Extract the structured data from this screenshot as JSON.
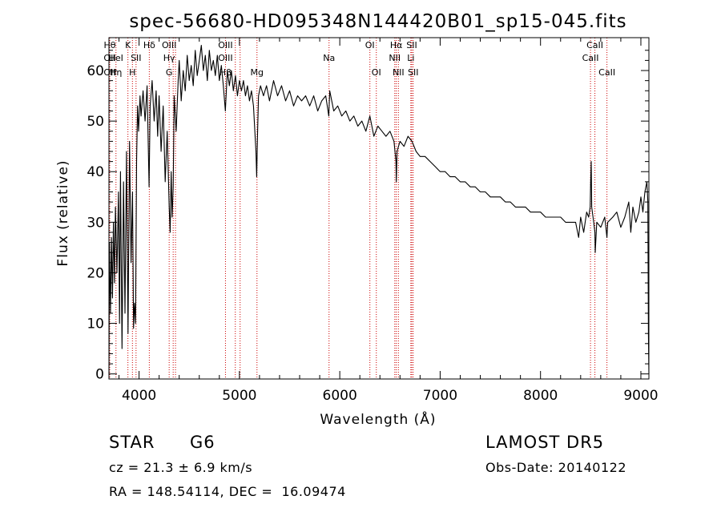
{
  "chart_data": {
    "type": "line",
    "title": "spec-56680-HD095348N144420B01_sp15-045.fits",
    "xlabel": "Wavelength (Å)",
    "ylabel": "Flux (relative)",
    "xlim": [
      3700,
      9080
    ],
    "ylim": [
      -1,
      66.5
    ],
    "xticks": [
      4000,
      5000,
      6000,
      7000,
      8000,
      9000
    ],
    "yticks": [
      0,
      10,
      20,
      30,
      40,
      50,
      60
    ],
    "grid": false,
    "series": [
      {
        "points": [
          [
            3700,
            0
          ],
          [
            3705,
            26
          ],
          [
            3715,
            12
          ],
          [
            3725,
            27
          ],
          [
            3735,
            15
          ],
          [
            3745,
            30
          ],
          [
            3755,
            18
          ],
          [
            3765,
            33
          ],
          [
            3780,
            20
          ],
          [
            3795,
            36
          ],
          [
            3805,
            10
          ],
          [
            3815,
            40
          ],
          [
            3830,
            5
          ],
          [
            3845,
            38
          ],
          [
            3860,
            12
          ],
          [
            3875,
            44
          ],
          [
            3890,
            8
          ],
          [
            3905,
            46
          ],
          [
            3920,
            22
          ],
          [
            3935,
            36
          ],
          [
            3945,
            9
          ],
          [
            3955,
            14
          ],
          [
            3965,
            10
          ],
          [
            3975,
            42
          ],
          [
            3985,
            53
          ],
          [
            3995,
            48
          ],
          [
            4010,
            55
          ],
          [
            4020,
            51
          ],
          [
            4040,
            56
          ],
          [
            4060,
            50
          ],
          [
            4080,
            57
          ],
          [
            4100,
            37
          ],
          [
            4110,
            53
          ],
          [
            4130,
            58
          ],
          [
            4150,
            50
          ],
          [
            4170,
            56
          ],
          [
            4185,
            47
          ],
          [
            4200,
            55
          ],
          [
            4220,
            44
          ],
          [
            4240,
            53
          ],
          [
            4260,
            38
          ],
          [
            4280,
            48
          ],
          [
            4300,
            33
          ],
          [
            4310,
            28
          ],
          [
            4320,
            40
          ],
          [
            4330,
            31
          ],
          [
            4340,
            37
          ],
          [
            4350,
            55
          ],
          [
            4370,
            48
          ],
          [
            4390,
            58
          ],
          [
            4400,
            62
          ],
          [
            4420,
            54
          ],
          [
            4440,
            60
          ],
          [
            4460,
            56
          ],
          [
            4480,
            63
          ],
          [
            4500,
            58
          ],
          [
            4520,
            61
          ],
          [
            4540,
            57
          ],
          [
            4560,
            64
          ],
          [
            4580,
            59
          ],
          [
            4600,
            62
          ],
          [
            4620,
            65
          ],
          [
            4640,
            60
          ],
          [
            4660,
            63
          ],
          [
            4680,
            58
          ],
          [
            4700,
            64
          ],
          [
            4720,
            60
          ],
          [
            4740,
            62
          ],
          [
            4760,
            59
          ],
          [
            4780,
            63
          ],
          [
            4800,
            58
          ],
          [
            4820,
            61
          ],
          [
            4840,
            57
          ],
          [
            4860,
            52
          ],
          [
            4880,
            60
          ],
          [
            4900,
            57
          ],
          [
            4920,
            60
          ],
          [
            4940,
            56
          ],
          [
            4960,
            59
          ],
          [
            4980,
            55
          ],
          [
            5000,
            58
          ],
          [
            5020,
            56
          ],
          [
            5040,
            58
          ],
          [
            5060,
            55
          ],
          [
            5080,
            57
          ],
          [
            5100,
            54
          ],
          [
            5120,
            56
          ],
          [
            5140,
            53
          ],
          [
            5165,
            44
          ],
          [
            5172,
            39
          ],
          [
            5180,
            47
          ],
          [
            5190,
            55
          ],
          [
            5210,
            57
          ],
          [
            5240,
            55
          ],
          [
            5270,
            57
          ],
          [
            5300,
            54
          ],
          [
            5340,
            58
          ],
          [
            5380,
            55
          ],
          [
            5420,
            57
          ],
          [
            5460,
            54
          ],
          [
            5500,
            56
          ],
          [
            5540,
            53
          ],
          [
            5580,
            55
          ],
          [
            5620,
            54
          ],
          [
            5660,
            55
          ],
          [
            5700,
            53
          ],
          [
            5740,
            55
          ],
          [
            5780,
            52
          ],
          [
            5820,
            54
          ],
          [
            5860,
            55
          ],
          [
            5890,
            51
          ],
          [
            5900,
            56
          ],
          [
            5940,
            52
          ],
          [
            5980,
            53
          ],
          [
            6020,
            51
          ],
          [
            6060,
            52
          ],
          [
            6100,
            50
          ],
          [
            6140,
            51
          ],
          [
            6180,
            49
          ],
          [
            6220,
            50
          ],
          [
            6260,
            48
          ],
          [
            6300,
            51
          ],
          [
            6340,
            47
          ],
          [
            6380,
            49
          ],
          [
            6420,
            48
          ],
          [
            6460,
            47
          ],
          [
            6500,
            48
          ],
          [
            6540,
            46
          ],
          [
            6560,
            42
          ],
          [
            6563,
            38
          ],
          [
            6570,
            44
          ],
          [
            6600,
            46
          ],
          [
            6640,
            45
          ],
          [
            6680,
            47
          ],
          [
            6720,
            46
          ],
          [
            6760,
            44
          ],
          [
            6800,
            43
          ],
          [
            6850,
            43
          ],
          [
            6900,
            42
          ],
          [
            6950,
            41
          ],
          [
            7000,
            40
          ],
          [
            7050,
            40
          ],
          [
            7100,
            39
          ],
          [
            7150,
            39
          ],
          [
            7200,
            38
          ],
          [
            7250,
            38
          ],
          [
            7300,
            37
          ],
          [
            7350,
            37
          ],
          [
            7400,
            36
          ],
          [
            7450,
            36
          ],
          [
            7500,
            35
          ],
          [
            7550,
            35
          ],
          [
            7600,
            35
          ],
          [
            7650,
            34
          ],
          [
            7700,
            34
          ],
          [
            7750,
            33
          ],
          [
            7800,
            33
          ],
          [
            7850,
            33
          ],
          [
            7900,
            32
          ],
          [
            7950,
            32
          ],
          [
            8000,
            32
          ],
          [
            8050,
            31
          ],
          [
            8100,
            31
          ],
          [
            8150,
            31
          ],
          [
            8200,
            31
          ],
          [
            8250,
            30
          ],
          [
            8300,
            30
          ],
          [
            8350,
            30
          ],
          [
            8380,
            27
          ],
          [
            8400,
            31
          ],
          [
            8430,
            28
          ],
          [
            8460,
            32
          ],
          [
            8480,
            31
          ],
          [
            8495,
            33
          ],
          [
            8500,
            38
          ],
          [
            8505,
            42
          ],
          [
            8510,
            33
          ],
          [
            8530,
            30
          ],
          [
            8542,
            28
          ],
          [
            8545,
            24
          ],
          [
            8560,
            30
          ],
          [
            8600,
            29
          ],
          [
            8640,
            31
          ],
          [
            8662,
            27
          ],
          [
            8670,
            30
          ],
          [
            8720,
            31
          ],
          [
            8760,
            32
          ],
          [
            8800,
            29
          ],
          [
            8840,
            31
          ],
          [
            8880,
            34
          ],
          [
            8900,
            28
          ],
          [
            8920,
            33
          ],
          [
            8950,
            30
          ],
          [
            8980,
            32
          ],
          [
            9000,
            35
          ],
          [
            9020,
            32
          ],
          [
            9040,
            36
          ],
          [
            9060,
            38
          ],
          [
            9070,
            34
          ],
          [
            9075,
            8
          ],
          [
            9080,
            0
          ]
        ]
      }
    ],
    "lines": [
      {
        "x": 3708,
        "labels": [
          {
            "t": "Hθ",
            "row": 0
          },
          {
            "t": "OII",
            "row": 1
          },
          {
            "t": "OII",
            "row": 2
          }
        ]
      },
      {
        "x": 3770,
        "labels": [
          {
            "t": "HeI",
            "row": 1
          },
          {
            "t": "Hη",
            "row": 2
          }
        ]
      },
      {
        "x": 3889,
        "labels": [
          {
            "t": "K",
            "row": 0
          }
        ]
      },
      {
        "x": 3934,
        "labels": [
          {
            "t": "H",
            "row": 2
          }
        ]
      },
      {
        "x": 3970,
        "labels": [
          {
            "t": "SII",
            "row": 1
          }
        ]
      },
      {
        "x": 4102,
        "labels": [
          {
            "t": "Hδ",
            "row": 0
          }
        ]
      },
      {
        "x": 4300,
        "labels": [
          {
            "t": "OIII",
            "row": 0
          },
          {
            "t": "Hγ",
            "row": 1
          },
          {
            "t": "G",
            "row": 2
          }
        ]
      },
      {
        "x": 4340,
        "labels": []
      },
      {
        "x": 4363,
        "labels": []
      },
      {
        "x": 4861,
        "labels": [
          {
            "t": "OIII",
            "row": 0
          },
          {
            "t": "OIII",
            "row": 1
          },
          {
            "t": "Hβ",
            "row": 2
          }
        ]
      },
      {
        "x": 4959,
        "labels": []
      },
      {
        "x": 5007,
        "labels": []
      },
      {
        "x": 5175,
        "labels": [
          {
            "t": "Mg",
            "row": 2
          }
        ]
      },
      {
        "x": 5893,
        "labels": [
          {
            "t": "Na",
            "row": 1
          }
        ]
      },
      {
        "x": 6300,
        "labels": [
          {
            "t": "OI",
            "row": 0
          }
        ]
      },
      {
        "x": 6364,
        "labels": [
          {
            "t": "OI",
            "row": 2
          }
        ]
      },
      {
        "x": 6548,
        "labels": [
          {
            "t": "NII",
            "row": 1
          }
        ]
      },
      {
        "x": 6563,
        "labels": [
          {
            "t": "Hα",
            "row": 0
          }
        ]
      },
      {
        "x": 6584,
        "labels": [
          {
            "t": "NII",
            "row": 2
          }
        ]
      },
      {
        "x": 6708,
        "labels": [
          {
            "t": "Li",
            "row": 1
          }
        ]
      },
      {
        "x": 6717,
        "labels": [
          {
            "t": "SII",
            "row": 0
          }
        ]
      },
      {
        "x": 6731,
        "labels": [
          {
            "t": "SII",
            "row": 2
          }
        ]
      },
      {
        "x": 8498,
        "labels": [
          {
            "t": "CaII",
            "row": 1
          }
        ]
      },
      {
        "x": 8542,
        "labels": [
          {
            "t": "CaII",
            "row": 0
          }
        ]
      },
      {
        "x": 8662,
        "labels": [
          {
            "t": "CaII",
            "row": 2
          }
        ]
      }
    ]
  },
  "info": {
    "class": "STAR",
    "subclass": "G6",
    "survey": "LAMOST DR5",
    "cz": "cz = 21.3 ± 6.9 km/s",
    "obs_date": "Obs-Date: 20140122",
    "radec": "RA = 148.54114, DEC =  16.09474"
  },
  "colors": {
    "line_marker": "#cc0000",
    "spectrum": "#000000"
  }
}
